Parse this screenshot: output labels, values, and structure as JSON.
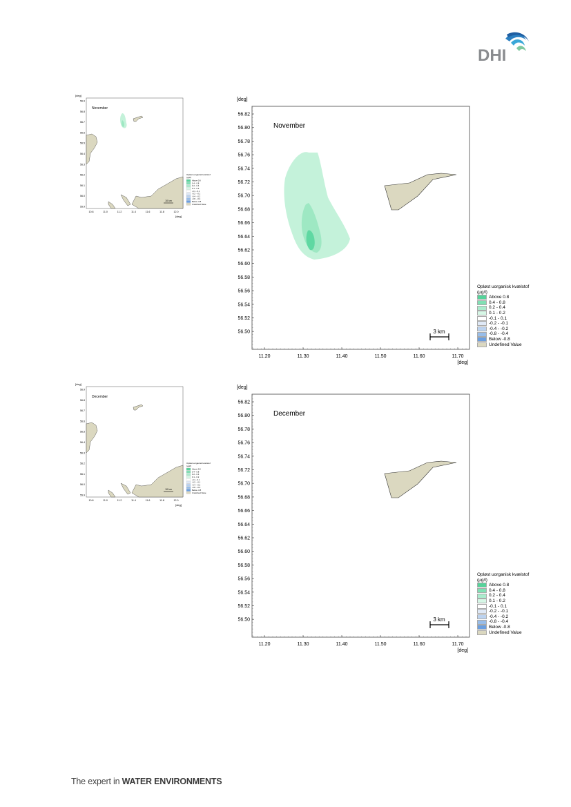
{
  "brand": {
    "logo_text": "DHI",
    "tagline_plain": "The expert in ",
    "tagline_bold": "WATER ENVIRONMENTS"
  },
  "colors": {
    "land": "#dbd8c0",
    "land_stroke": "#333333",
    "plume_light": "#c4f2da",
    "plume_mid": "#9ee8c3",
    "plume_dark": "#5fd8a2",
    "legend_above": "#55d39a",
    "legend_04_08": "#80e0b4",
    "legend_02_04": "#aaeccd",
    "legend_01_02": "#d6f7e6",
    "legend_m01_01": "#ffffff",
    "legend_m02_m01": "#dfe9f7",
    "legend_m04_m02": "#bcd3f0",
    "legend_m08_m04": "#98bde9",
    "legend_below": "#6b9fe0",
    "legend_undef": "#dbd8c0"
  },
  "axes": {
    "unit": "[deg]",
    "y_ticks": [
      "56.82",
      "56.80",
      "56.78",
      "56.76",
      "56.74",
      "56.72",
      "56.70",
      "56.68",
      "56.66",
      "56.64",
      "56.62",
      "56.60",
      "56.58",
      "56.56",
      "56.54",
      "56.52",
      "56.50"
    ],
    "x_ticks": [
      "11.20",
      "11.30",
      "11.40",
      "11.50",
      "11.60",
      "11.70"
    ]
  },
  "small_axes": {
    "y_ticks": [
      "56.9",
      "56.8",
      "56.7",
      "56.6",
      "56.5",
      "56.4",
      "56.3",
      "56.2",
      "56.1",
      "56.0",
      "55.9"
    ],
    "x_ticks": [
      "10.8",
      "11.0",
      "11.2",
      "11.4",
      "11.6",
      "11.8",
      "12.0"
    ],
    "scalebar": "10 km"
  },
  "legend": {
    "title": "Opløst uorganisk kvælstof",
    "unit": "(µg/l)",
    "items": [
      {
        "label": "Above  0.8",
        "color": "#55d39a"
      },
      {
        "label": "0.4 -  0.8",
        "color": "#80e0b4"
      },
      {
        "label": "0.2 -  0.4",
        "color": "#aaeccd"
      },
      {
        "label": "0.1 -  0.2",
        "color": "#d6f7e6"
      },
      {
        "label": "-0.1 -  0.1",
        "color": "#ffffff"
      },
      {
        "label": "-0.2 - -0.1",
        "color": "#dfe9f7"
      },
      {
        "label": "-0.4 - -0.2",
        "color": "#bcd3f0"
      },
      {
        "label": "-0.8 - -0.4",
        "color": "#98bde9"
      },
      {
        "label": "Below -0.8",
        "color": "#6b9fe0"
      },
      {
        "label": "Undefined Value",
        "color": "#dbd8c0"
      }
    ]
  },
  "scalebar": "3 km",
  "maps": [
    {
      "month": "November",
      "has_plume": true
    },
    {
      "month": "December",
      "has_plume": false
    }
  ]
}
